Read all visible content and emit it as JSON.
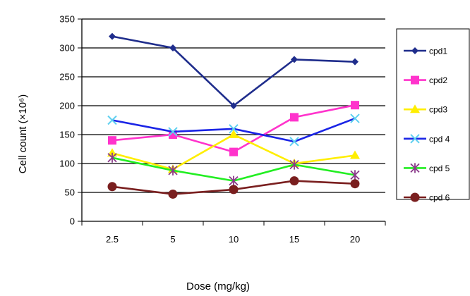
{
  "chart_data": {
    "type": "line",
    "title": "",
    "xlabel": "Dose (mg/kg)",
    "ylabel": "Cell count (×10⁶)",
    "categories": [
      "2.5",
      "5",
      "10",
      "15",
      "20"
    ],
    "ylim": [
      0,
      350
    ],
    "yticks": [
      "0",
      "50",
      "100",
      "150",
      "200",
      "250",
      "300",
      "350"
    ],
    "grid": "horizontal",
    "legend_position": "right",
    "series": [
      {
        "name": "cpd1",
        "values": [
          320,
          300,
          200,
          280,
          276
        ],
        "color": "#1f2d8c",
        "marker": "diamond"
      },
      {
        "name": "cpd2",
        "values": [
          140,
          150,
          120,
          180,
          201
        ],
        "color": "#ff33cc",
        "marker": "square"
      },
      {
        "name": "cpd3",
        "values": [
          118,
          90,
          150,
          100,
          114
        ],
        "color": "#ffee00",
        "marker": "triangle"
      },
      {
        "name": "cpd 4",
        "values": [
          175,
          155,
          160,
          138,
          178
        ],
        "color": "#1a24e6",
        "marker": "x"
      },
      {
        "name": "cpd 5",
        "values": [
          110,
          88,
          70,
          98,
          80
        ],
        "color": "#22ee22",
        "marker": "star"
      },
      {
        "name": "cpd 6",
        "values": [
          60,
          47,
          55,
          70,
          65
        ],
        "color": "#7a1f1f",
        "marker": "circle"
      }
    ]
  }
}
